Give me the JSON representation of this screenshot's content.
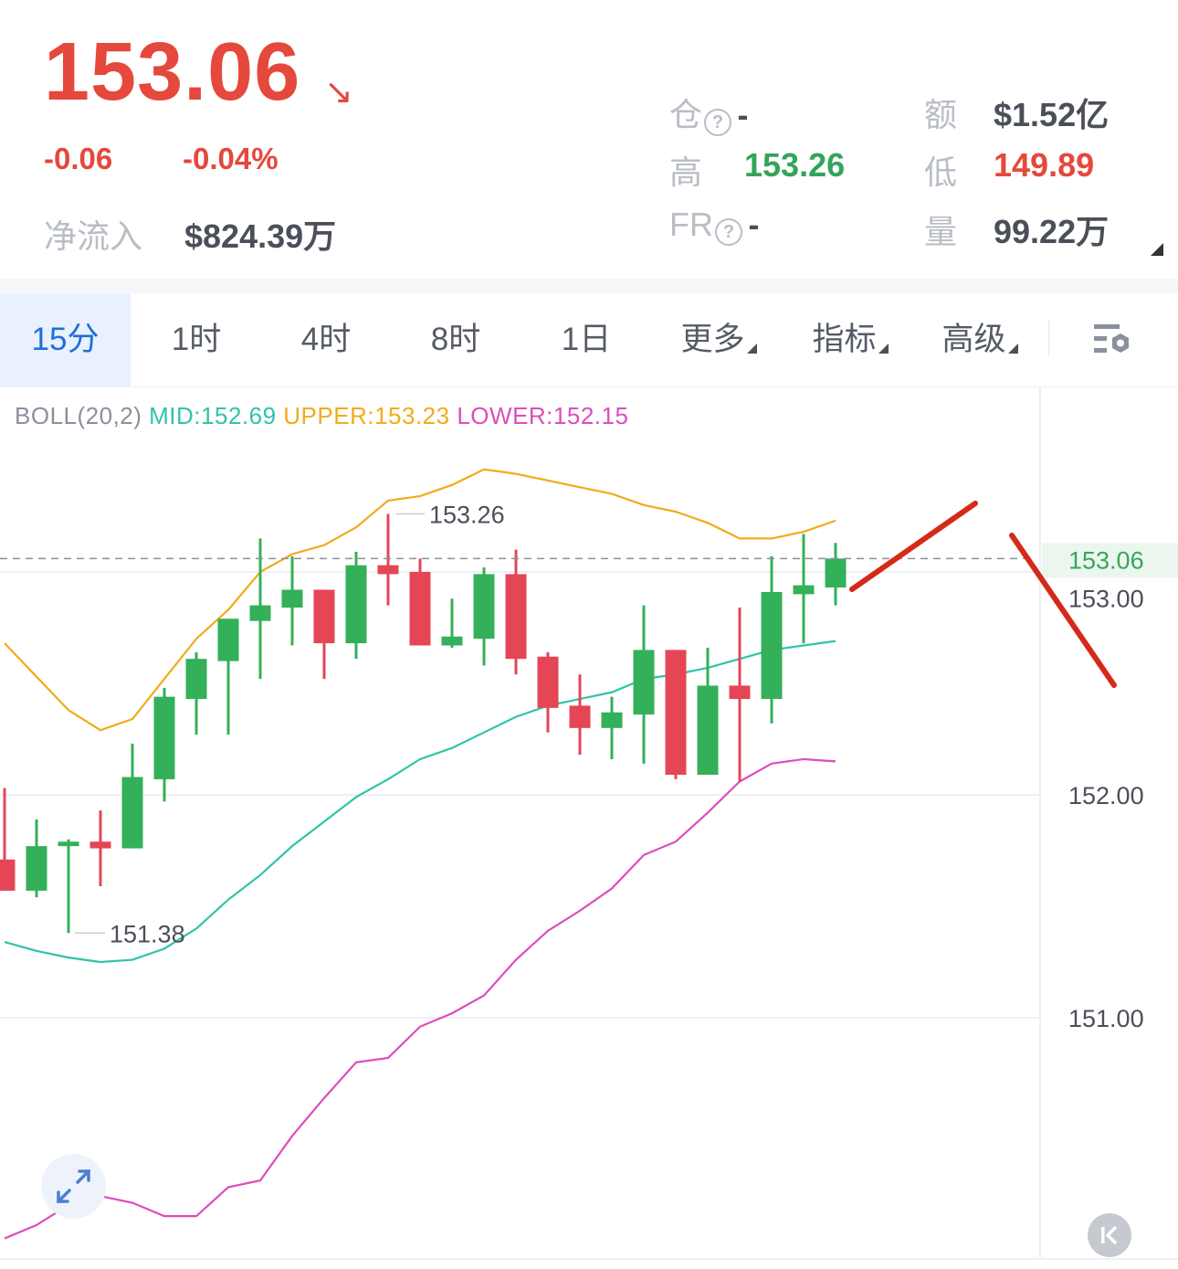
{
  "header": {
    "price": "153.06",
    "direction_icon": "arrow-down-right-icon",
    "change": "-0.06",
    "change_pct": "-0.04%",
    "net_inflow_label": "净流入",
    "net_inflow_value": "$824.39万",
    "stats": {
      "open_interest_label": "仓",
      "open_interest_value": "-",
      "high_label": "高",
      "high_value": "153.26",
      "fr_label": "FR",
      "fr_value": "-",
      "amount_label": "额",
      "amount_value": "$1.52亿",
      "low_label": "低",
      "low_value": "149.89",
      "volume_label": "量",
      "volume_value": "99.22万",
      "help_glyph": "?"
    }
  },
  "tabs": [
    {
      "label": "15分",
      "active": true
    },
    {
      "label": "1时"
    },
    {
      "label": "4时"
    },
    {
      "label": "8时"
    },
    {
      "label": "1日"
    },
    {
      "label": "更多",
      "dropdown": true
    },
    {
      "label": "指标",
      "dropdown": true
    },
    {
      "label": "高级",
      "dropdown": true
    }
  ],
  "chart_settings_icon": "chart-settings-icon",
  "indicator": {
    "name": "BOLL(20,2)",
    "mid": "MID:152.69",
    "upper": "UPPER:153.23",
    "lower": "LOWER:152.15"
  },
  "colors": {
    "up": "#34b05a",
    "down": "#e44655",
    "mid": "#2ec4a8",
    "upper": "#f0ac1a",
    "lower": "#dc4dbd",
    "accent": "#1e6fd9",
    "annotation": "#d42a1a"
  },
  "chart_data": {
    "type": "candlestick",
    "ylim": [
      149.92,
      153.82
    ],
    "grid": true,
    "y_ticks": [
      "153.00",
      "152.00",
      "151.00"
    ],
    "y_tick_values": [
      153.0,
      152.0,
      151.0
    ],
    "current_price": 153.06,
    "current_price_label": "153.06",
    "high_marker": {
      "index": 12,
      "value": 153.26,
      "label": "153.26"
    },
    "low_marker": {
      "index": 2,
      "value": 151.38,
      "label": "151.38"
    },
    "ohlc": [
      [
        151.71,
        152.03,
        151.57,
        151.57
      ],
      [
        151.57,
        151.89,
        151.54,
        151.77
      ],
      [
        151.77,
        151.8,
        151.38,
        151.79
      ],
      [
        151.79,
        151.93,
        151.59,
        151.76
      ],
      [
        151.76,
        152.23,
        151.76,
        152.08
      ],
      [
        152.07,
        152.48,
        151.97,
        152.44
      ],
      [
        152.43,
        152.64,
        152.27,
        152.61
      ],
      [
        152.6,
        152.79,
        152.27,
        152.79
      ],
      [
        152.78,
        153.15,
        152.52,
        152.85
      ],
      [
        152.84,
        153.07,
        152.67,
        152.92
      ],
      [
        152.92,
        152.92,
        152.52,
        152.68
      ],
      [
        152.68,
        153.09,
        152.61,
        153.03
      ],
      [
        153.03,
        153.26,
        152.85,
        152.99
      ],
      [
        153.0,
        153.06,
        152.67,
        152.67
      ],
      [
        152.67,
        152.88,
        152.66,
        152.71
      ],
      [
        152.7,
        153.02,
        152.58,
        152.99
      ],
      [
        152.99,
        153.1,
        152.54,
        152.61
      ],
      [
        152.62,
        152.64,
        152.28,
        152.39
      ],
      [
        152.4,
        152.54,
        152.18,
        152.3
      ],
      [
        152.3,
        152.44,
        152.16,
        152.37
      ],
      [
        152.36,
        152.85,
        152.14,
        152.65
      ],
      [
        152.65,
        152.65,
        152.07,
        152.09
      ],
      [
        152.09,
        152.66,
        152.09,
        152.49
      ],
      [
        152.49,
        152.84,
        152.06,
        152.43
      ],
      [
        152.43,
        153.07,
        152.32,
        152.91
      ],
      [
        152.9,
        153.17,
        152.68,
        152.94
      ],
      [
        152.93,
        153.13,
        152.85,
        153.06
      ]
    ],
    "upper": [
      152.68,
      152.53,
      152.38,
      152.29,
      152.34,
      152.52,
      152.7,
      152.83,
      153.0,
      153.08,
      153.12,
      153.2,
      153.32,
      153.34,
      153.39,
      153.46,
      153.44,
      153.41,
      153.38,
      153.35,
      153.3,
      153.27,
      153.22,
      153.15,
      153.15,
      153.18,
      153.23
    ],
    "mid": [
      151.34,
      151.3,
      151.27,
      151.25,
      151.26,
      151.31,
      151.4,
      151.53,
      151.64,
      151.77,
      151.88,
      151.99,
      152.07,
      152.16,
      152.21,
      152.28,
      152.35,
      152.4,
      152.43,
      152.46,
      152.52,
      152.54,
      152.57,
      152.61,
      152.65,
      152.67,
      152.69
    ],
    "lower": [
      150.01,
      150.07,
      150.16,
      150.2,
      150.17,
      150.11,
      150.11,
      150.24,
      150.27,
      150.47,
      150.64,
      150.8,
      150.82,
      150.96,
      151.02,
      151.1,
      151.26,
      151.39,
      151.48,
      151.58,
      151.73,
      151.79,
      151.92,
      152.06,
      152.14,
      152.16,
      152.15
    ]
  },
  "controls": {
    "expand_icon": "expand-icon",
    "latest_icon": "scroll-to-latest-icon"
  }
}
